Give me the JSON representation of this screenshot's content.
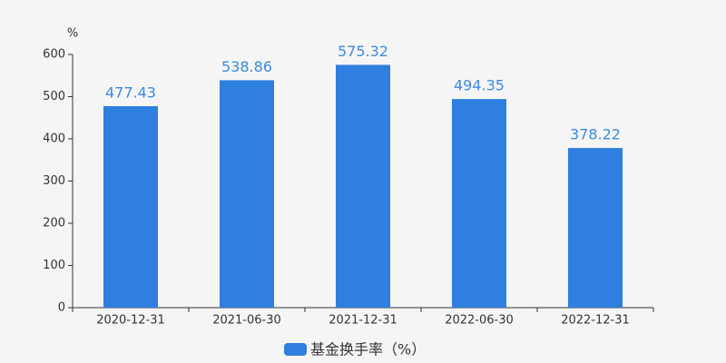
{
  "chart_data": {
    "type": "bar",
    "ylabel": "%",
    "categories": [
      "2020-12-31",
      "2021-06-30",
      "2021-12-31",
      "2022-06-30",
      "2022-12-31"
    ],
    "series": [
      {
        "name": "基金换手率（%）",
        "color": "#2e7fe0",
        "values": [
          477.43,
          538.86,
          575.32,
          494.35,
          378.22
        ]
      }
    ],
    "ylim": [
      0,
      600
    ],
    "yticks": [
      0,
      100,
      200,
      300,
      400,
      500,
      600
    ],
    "grid": false,
    "legend": "bottom"
  }
}
